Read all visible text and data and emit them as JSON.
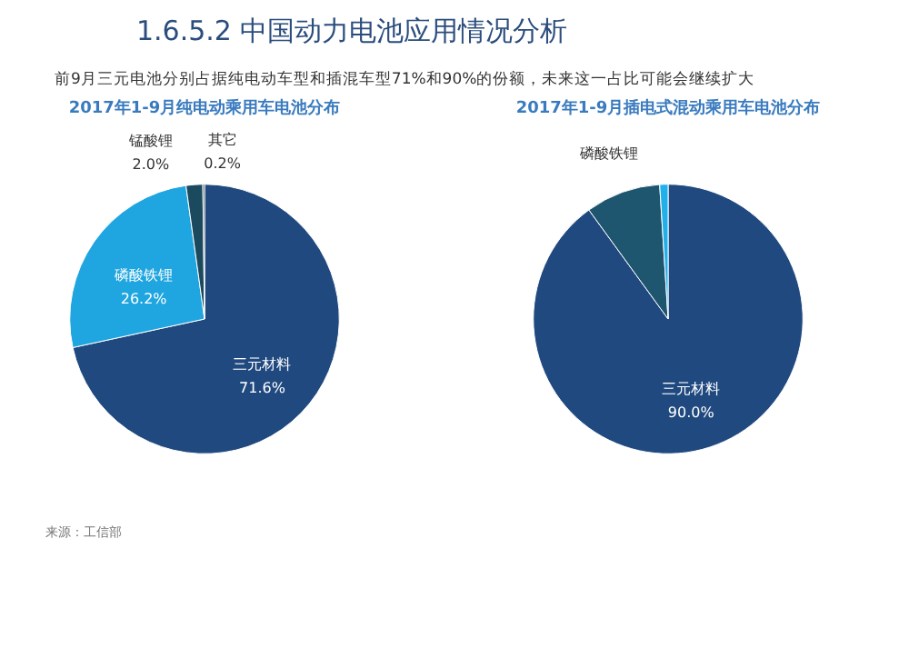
{
  "chart_data": [
    {
      "type": "pie",
      "title": "2017年1-9月纯电动乘用车电池分布",
      "annotations": [
        "1.6.5.2 中国动力电池应用情况分析",
        "前9月三元电池分别占据纯电动车型和插混车型71%和90%的份额，未来这一占比可能会继续扩大",
        "来源：工信部"
      ],
      "categories": [
        "三元材料",
        "磷酸铁锂",
        "锰酸锂",
        "其它"
      ],
      "values": [
        71.6,
        26.2,
        2.0,
        0.2
      ],
      "colors": [
        "#20497f",
        "#1fa5df",
        "#1b4a5e",
        "#12283d"
      ],
      "value_labels": [
        "71.6%",
        "26.2%",
        "2.0%",
        "0.2%"
      ]
    },
    {
      "type": "pie",
      "title": "2017年1-9月插电式混动乘用车电池分布",
      "categories": [
        "三元材料",
        "磷酸铁锂",
        null
      ],
      "values": [
        90.0,
        9.0,
        1.0
      ],
      "colors": [
        "#20497f",
        "#1d566e",
        "#22b0ea"
      ],
      "value_labels": [
        "90.0%",
        null,
        null
      ]
    }
  ]
}
